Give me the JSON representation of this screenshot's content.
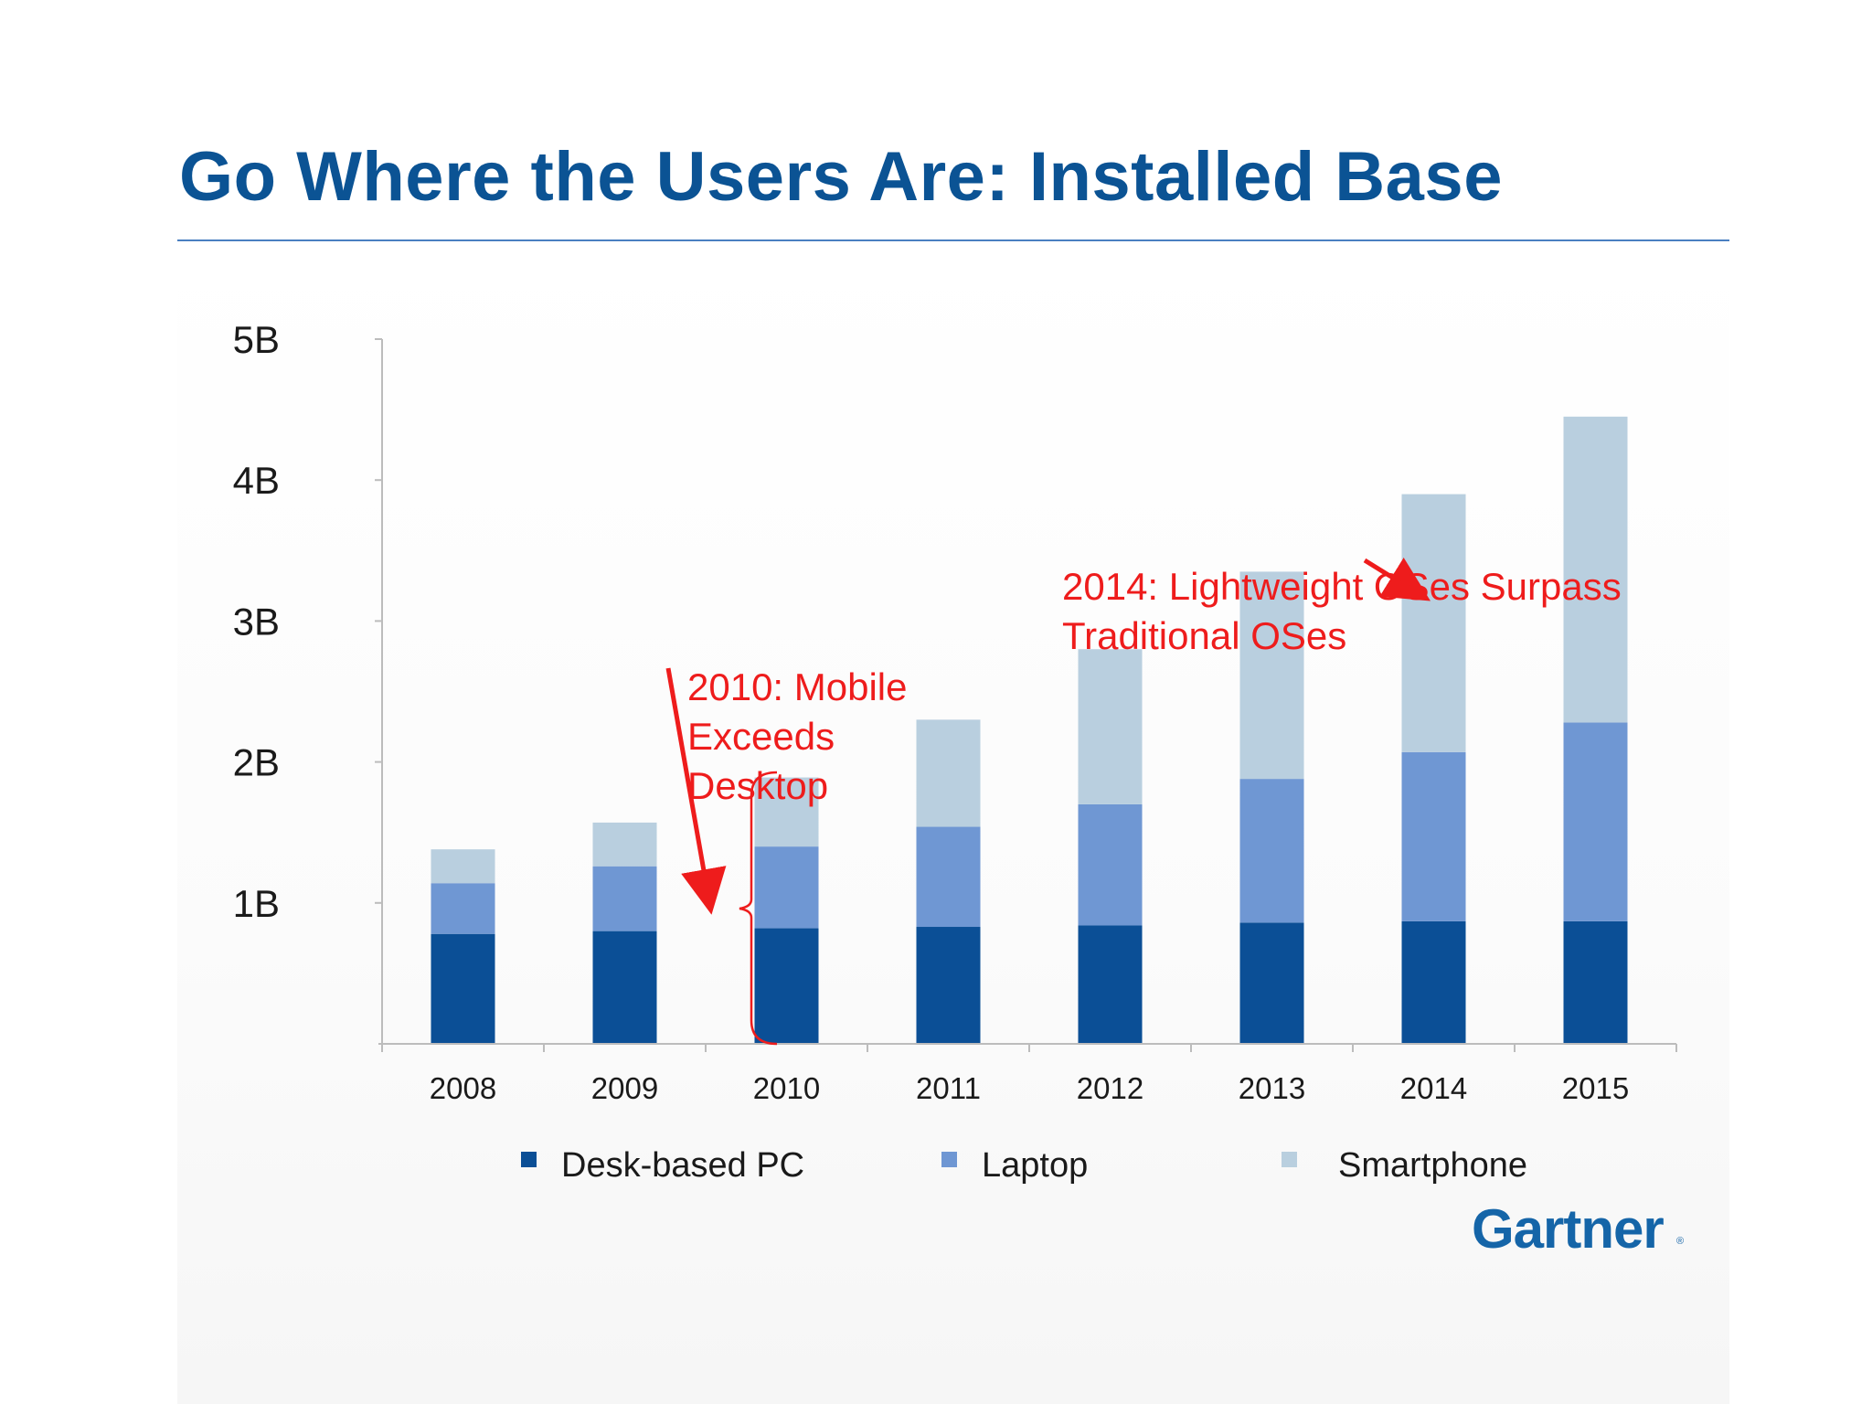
{
  "page": {
    "title": "Go Where the Users Are: Installed Base",
    "brand": "Gartner",
    "brand_mark": "®"
  },
  "chart_data": {
    "type": "bar",
    "stacked": true,
    "title": "Go Where the Users Are: Installed Base",
    "xlabel": "",
    "ylabel": "",
    "categories": [
      "2008",
      "2009",
      "2010",
      "2011",
      "2012",
      "2013",
      "2014",
      "2015"
    ],
    "series": [
      {
        "name": "Desk-based PC",
        "color": "#0b4f96",
        "values": [
          0.78,
          0.8,
          0.82,
          0.83,
          0.84,
          0.86,
          0.87,
          0.87
        ]
      },
      {
        "name": "Laptop",
        "color": "#6f97d3",
        "values": [
          0.36,
          0.46,
          0.58,
          0.71,
          0.86,
          1.02,
          1.2,
          1.41
        ]
      },
      {
        "name": "Smartphone",
        "color": "#b9cfdf",
        "values": [
          0.24,
          0.31,
          0.49,
          0.76,
          1.1,
          1.47,
          1.83,
          2.17
        ]
      }
    ],
    "ylim": [
      0,
      5
    ],
    "yticks": [
      1,
      2,
      3,
      4,
      5
    ],
    "ytick_labels": [
      "1B",
      "2B",
      "3B",
      "4B",
      "5B"
    ],
    "grid": false,
    "legend_position": "bottom",
    "annotations": [
      {
        "target": "2010",
        "lines": [
          "2010: Mobile",
          "Exceeds",
          "Desktop"
        ],
        "color": "#ee1c1c"
      },
      {
        "target": "2014",
        "lines": [
          "2014: Lightweight OSes Surpass",
          "Traditional OSes"
        ],
        "color": "#ee1c1c"
      }
    ]
  }
}
